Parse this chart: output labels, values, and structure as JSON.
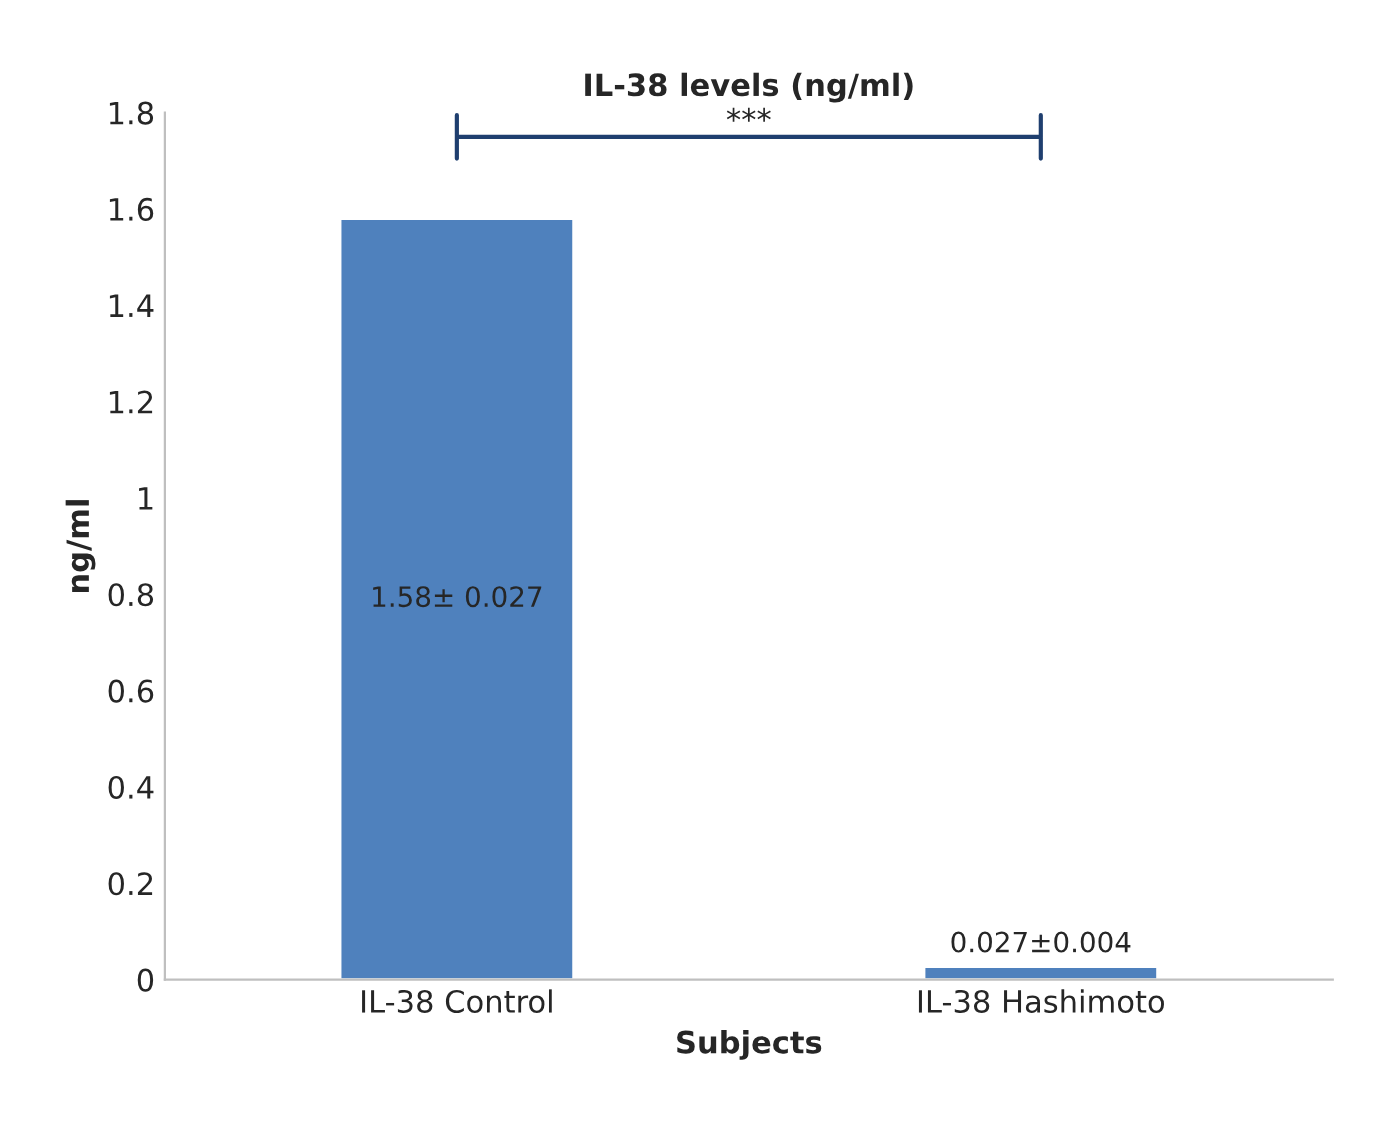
{
  "chart_data": {
    "type": "bar",
    "title": "IL-38 levels (ng/ml)",
    "xlabel": "Subjects",
    "ylabel": "ng/ml",
    "categories": [
      "IL-38 Control",
      "IL-38 Hashimoto"
    ],
    "values": [
      1.58,
      0.027
    ],
    "color": "#4f81bd",
    "value_labels": [
      "1.58± 0.027",
      "0.027±0.004"
    ],
    "ylim": [
      0,
      1.8
    ],
    "yticks": [
      0,
      0.2,
      0.4,
      0.6,
      0.8,
      1,
      1.2,
      1.4,
      1.6,
      1.8
    ],
    "annotations": [
      "***"
    ],
    "grid": false
  }
}
